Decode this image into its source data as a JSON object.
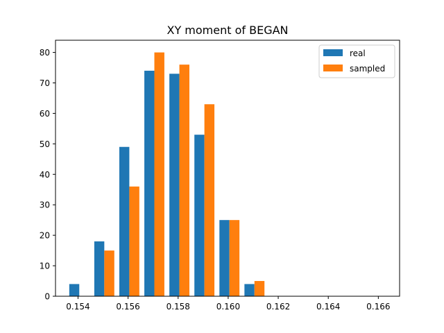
{
  "chart_data": {
    "type": "bar",
    "title": "XY moment of BEGAN",
    "xlabel": "",
    "ylabel": "",
    "bin_edges": [
      0.153,
      0.154,
      0.155,
      0.156,
      0.157,
      0.158,
      0.159,
      0.16,
      0.161,
      0.162,
      0.163,
      0.164,
      0.165,
      0.166,
      0.167
    ],
    "bins": [
      {
        "left": 0.15365,
        "right": 0.15465
      },
      {
        "left": 0.15465,
        "right": 0.15565
      },
      {
        "left": 0.15565,
        "right": 0.15665
      },
      {
        "left": 0.15665,
        "right": 0.15765
      },
      {
        "left": 0.15765,
        "right": 0.15865
      },
      {
        "left": 0.15865,
        "right": 0.15965
      },
      {
        "left": 0.15965,
        "right": 0.16065
      },
      {
        "left": 0.16065,
        "right": 0.16165
      }
    ],
    "series": [
      {
        "name": "real",
        "color": "#1f77b4",
        "values": [
          4,
          18,
          49,
          74,
          73,
          53,
          25,
          4
        ]
      },
      {
        "name": "sampled",
        "color": "#ff7f0e",
        "values": [
          0,
          15,
          36,
          80,
          76,
          63,
          25,
          5
        ]
      }
    ],
    "x_ticks": [
      "0.154",
      "0.156",
      "0.158",
      "0.160",
      "0.162",
      "0.164",
      "0.166"
    ],
    "x_tick_values": [
      0.154,
      0.156,
      0.158,
      0.16,
      0.162,
      0.164,
      0.166
    ],
    "y_ticks": [
      "0",
      "10",
      "20",
      "30",
      "40",
      "50",
      "60",
      "70",
      "80"
    ],
    "y_tick_values": [
      0,
      10,
      20,
      30,
      40,
      50,
      60,
      70,
      80
    ],
    "xlim": [
      0.1531,
      0.16685
    ],
    "ylim": [
      0,
      84
    ],
    "grid": false,
    "legend_position": "top-right"
  }
}
